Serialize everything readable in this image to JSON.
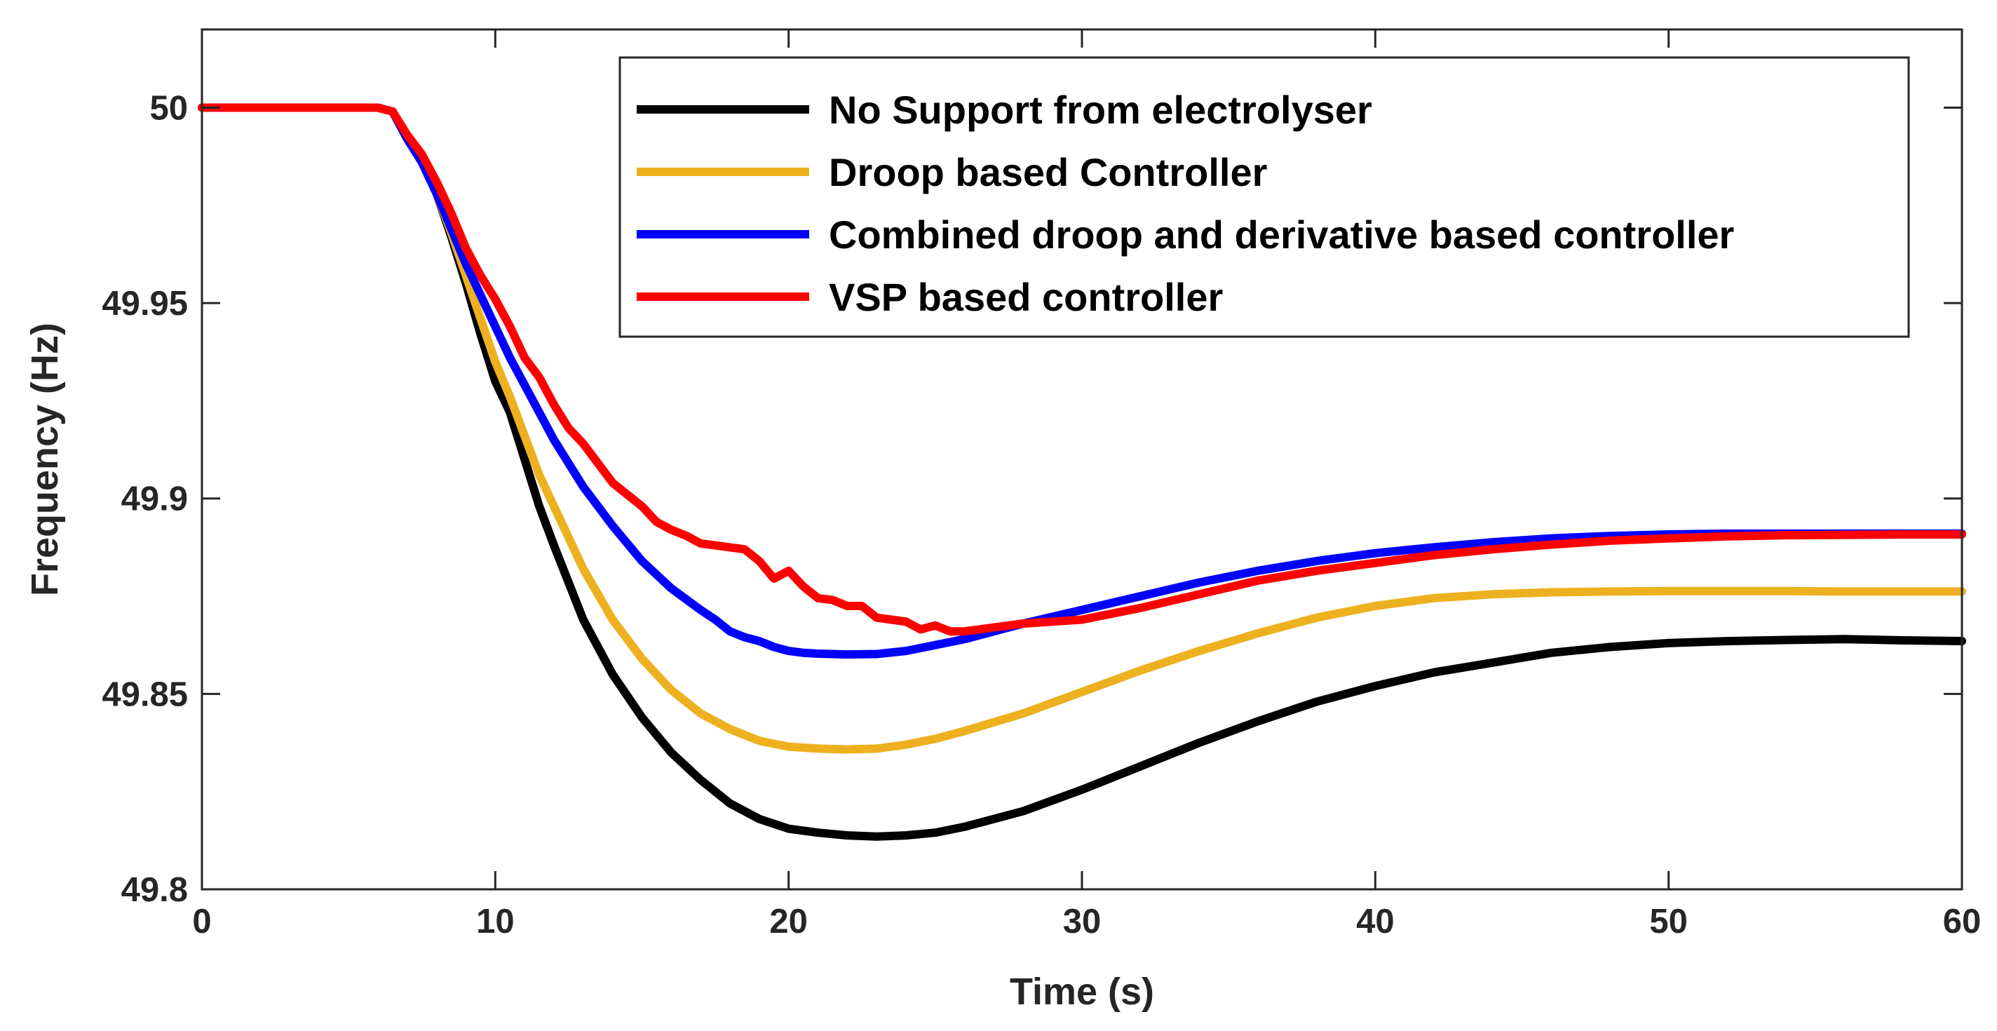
{
  "chart_data": {
    "type": "line",
    "title": "",
    "xlabel": "Time (s)",
    "ylabel": "Frequency (Hz)",
    "xlim": [
      0,
      60
    ],
    "ylim": [
      49.8,
      50.02
    ],
    "xticks": [
      "0",
      "10",
      "20",
      "30",
      "40",
      "50",
      "60"
    ],
    "yticks": [
      "49.8",
      "49.85",
      "49.9",
      "49.95",
      "50"
    ],
    "grid": false,
    "legend_position": "top-right",
    "series": [
      {
        "name": "No Support from electrolyser",
        "color": "#000000",
        "x": [
          0,
          6,
          6.5,
          7,
          7.5,
          8,
          8.5,
          9,
          9.5,
          10,
          10.5,
          11,
          11.5,
          12,
          13,
          14,
          15,
          16,
          17,
          18,
          19,
          20,
          21,
          22,
          23,
          24,
          25,
          26,
          28,
          30,
          32,
          34,
          36,
          38,
          40,
          42,
          44,
          46,
          48,
          50,
          52,
          54,
          56,
          58,
          60
        ],
        "y": [
          50,
          50,
          49.999,
          49.992,
          49.986,
          49.978,
          49.967,
          49.955,
          49.942,
          49.93,
          49.922,
          49.91,
          49.898,
          49.888,
          49.869,
          49.855,
          49.844,
          49.835,
          49.828,
          49.822,
          49.818,
          49.8155,
          49.8145,
          49.8138,
          49.8135,
          49.8138,
          49.8145,
          49.816,
          49.82,
          49.8255,
          49.8315,
          49.8375,
          49.843,
          49.848,
          49.852,
          49.8555,
          49.858,
          49.8605,
          49.862,
          49.863,
          49.8635,
          49.8638,
          49.864,
          49.8637,
          49.8635
        ]
      },
      {
        "name": "Droop based Controller",
        "color": "#EDB120",
        "x": [
          0,
          6,
          6.5,
          7,
          7.5,
          8,
          8.5,
          9,
          9.5,
          10,
          10.5,
          11,
          11.5,
          12,
          13,
          14,
          15,
          16,
          17,
          18,
          19,
          20,
          21,
          22,
          23,
          24,
          25,
          26,
          28,
          30,
          32,
          34,
          36,
          38,
          40,
          42,
          44,
          46,
          48,
          50,
          52,
          54,
          56,
          58,
          60
        ],
        "y": [
          50,
          50,
          49.999,
          49.992,
          49.986,
          49.978,
          49.968,
          49.957,
          49.946,
          49.935,
          49.926,
          49.916,
          49.906,
          49.898,
          49.882,
          49.869,
          49.859,
          49.851,
          49.845,
          49.841,
          49.838,
          49.8365,
          49.836,
          49.8358,
          49.836,
          49.837,
          49.8385,
          49.8405,
          49.845,
          49.8505,
          49.856,
          49.861,
          49.8655,
          49.8695,
          49.8725,
          49.8745,
          49.8755,
          49.876,
          49.8762,
          49.8763,
          49.8763,
          49.8763,
          49.8762,
          49.8762,
          49.8762
        ]
      },
      {
        "name": "Combined droop and derivative based controller",
        "color": "#0000FF",
        "x": [
          0,
          6,
          6.5,
          7,
          7.5,
          8,
          8.5,
          9,
          9.5,
          10,
          10.5,
          11,
          11.5,
          12,
          13,
          14,
          15,
          16,
          17,
          17.5,
          18,
          18.5,
          19,
          19.5,
          20,
          20.5,
          21,
          22,
          23,
          24,
          25,
          26,
          27,
          28,
          30,
          32,
          34,
          36,
          38,
          40,
          42,
          44,
          46,
          48,
          50,
          52,
          54,
          56,
          58,
          60
        ],
        "y": [
          50,
          50,
          49.999,
          49.992,
          49.986,
          49.978,
          49.969,
          49.96,
          49.952,
          49.944,
          49.936,
          49.929,
          49.922,
          49.915,
          49.903,
          49.893,
          49.884,
          49.877,
          49.8715,
          49.869,
          49.866,
          49.8645,
          49.8635,
          49.862,
          49.861,
          49.8605,
          49.8603,
          49.8601,
          49.8602,
          49.861,
          49.8625,
          49.864,
          49.866,
          49.868,
          49.8715,
          49.875,
          49.8785,
          49.8815,
          49.884,
          49.886,
          49.8875,
          49.8888,
          49.8898,
          49.8904,
          49.8908,
          49.891,
          49.891,
          49.891,
          49.891,
          49.891
        ]
      },
      {
        "name": "VSP based controller",
        "color": "#FF0000",
        "x": [
          0,
          6,
          6.5,
          7,
          7.5,
          8,
          8.5,
          9,
          9.5,
          10,
          10.5,
          11,
          11.5,
          12,
          12.5,
          13,
          13.5,
          14,
          14.5,
          15,
          15.5,
          16,
          16.5,
          17,
          17.5,
          18,
          18.5,
          19,
          19.5,
          20,
          20.5,
          21,
          21.5,
          22,
          22.5,
          23,
          23.5,
          24,
          24.5,
          25,
          25.5,
          26,
          26.5,
          27,
          27.5,
          28,
          29,
          30,
          32,
          34,
          36,
          38,
          40,
          42,
          44,
          46,
          48,
          50,
          52,
          54,
          56,
          58,
          60
        ],
        "y": [
          50,
          50,
          49.999,
          49.993,
          49.988,
          49.981,
          49.973,
          49.964,
          49.957,
          49.951,
          49.944,
          49.936,
          49.931,
          49.924,
          49.918,
          49.914,
          49.909,
          49.904,
          49.901,
          49.898,
          49.894,
          49.892,
          49.8905,
          49.8885,
          49.888,
          49.8875,
          49.887,
          49.884,
          49.8795,
          49.8815,
          49.8775,
          49.8745,
          49.874,
          49.8725,
          49.8725,
          49.8695,
          49.869,
          49.8685,
          49.8665,
          49.8675,
          49.866,
          49.866,
          49.8665,
          49.867,
          49.8675,
          49.868,
          49.8685,
          49.869,
          49.872,
          49.8755,
          49.879,
          49.8815,
          49.8835,
          49.8855,
          49.887,
          49.8882,
          49.8892,
          49.8898,
          49.8903,
          49.8906,
          49.8907,
          49.8908,
          49.8908
        ]
      }
    ]
  }
}
